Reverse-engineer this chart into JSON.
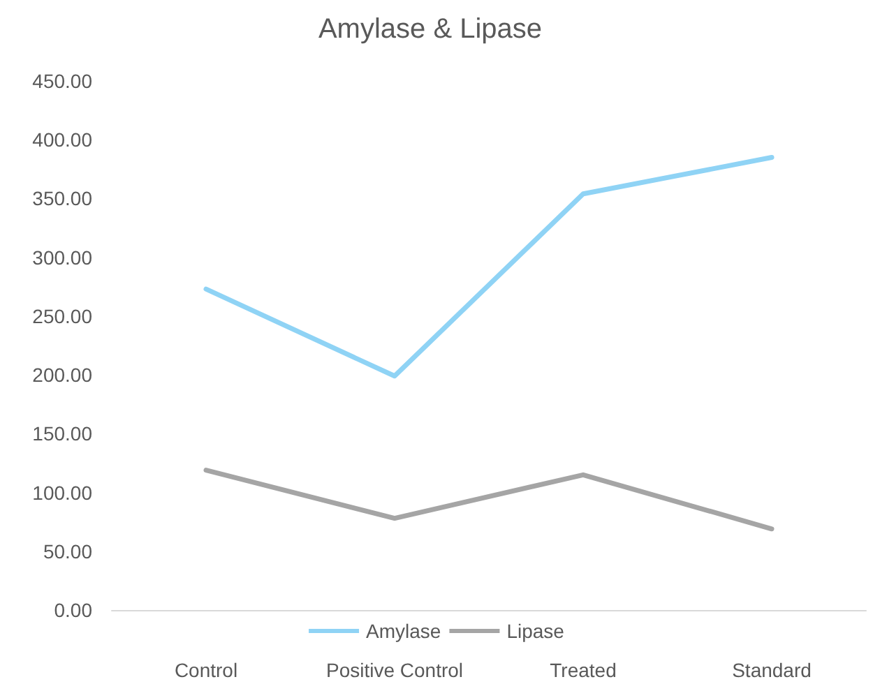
{
  "chart_data": {
    "type": "line",
    "title": "Amylase & Lipase",
    "categories": [
      "Control",
      "Positive Control",
      "Treated",
      "Standard"
    ],
    "series": [
      {
        "name": "Amylase",
        "color": "#8fd3f5",
        "values": [
          273,
          199,
          354,
          385
        ]
      },
      {
        "name": "Lipase",
        "color": "#a5a5a5",
        "values": [
          119,
          78,
          115,
          69
        ]
      }
    ],
    "ylim": [
      0,
      450
    ],
    "yticks": [
      {
        "value": 0,
        "label": "0.00"
      },
      {
        "value": 50,
        "label": "50.00"
      },
      {
        "value": 100,
        "label": "100.00"
      },
      {
        "value": 150,
        "label": "150.00"
      },
      {
        "value": 200,
        "label": "200.00"
      },
      {
        "value": 250,
        "label": "250.00"
      },
      {
        "value": 300,
        "label": "300.00"
      },
      {
        "value": 350,
        "label": "350.00"
      },
      {
        "value": 400,
        "label": "400.00"
      },
      {
        "value": 450,
        "label": "450.00"
      }
    ],
    "grid": false,
    "legend": "bottom",
    "marker": "none",
    "line_style": "solid"
  }
}
